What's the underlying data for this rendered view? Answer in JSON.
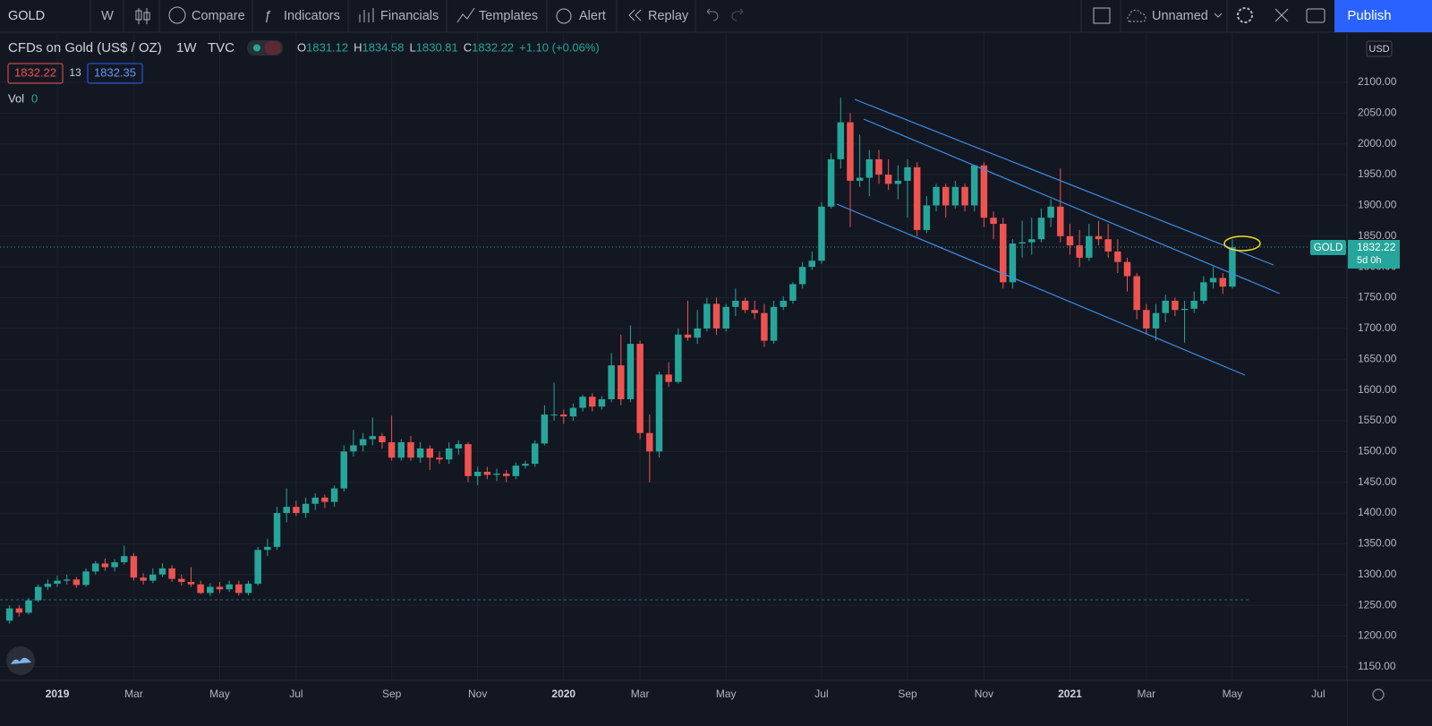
{
  "toolbar": {
    "symbol": "GOLD",
    "interval": "W",
    "compare": "Compare",
    "indicators": "Indicators",
    "financials": "Financials",
    "templates": "Templates",
    "alert": "Alert",
    "replay": "Replay",
    "layout_name": "Unnamed",
    "publish": "Publish"
  },
  "legend": {
    "title": "CFDs on Gold (US$ / OZ)",
    "interval": "1W",
    "source": "TVC",
    "ohlc": [
      {
        "key": "O",
        "value": "1831.12"
      },
      {
        "key": "H",
        "value": "1834.58"
      },
      {
        "key": "L",
        "value": "1830.81"
      },
      {
        "key": "C",
        "value": "1832.22"
      }
    ],
    "change": "+1.10 (+0.06%)",
    "bid": "1832.22",
    "spread": "13",
    "ask": "1832.35",
    "vol_label": "Vol",
    "vol_value": "0"
  },
  "price_axis": {
    "currency": "USD",
    "tag_symbol": "GOLD",
    "tag_price": "1832.22",
    "tag_countdown": "5d 0h"
  },
  "chart_data": {
    "type": "candlestick",
    "up_color": "#26a69a",
    "down_color": "#ef5350",
    "xlim": [
      -1,
      140
    ],
    "ylim": [
      1128,
      2180
    ],
    "xticks": [
      {
        "value": 5,
        "label": "2019"
      },
      {
        "value": 13,
        "label": "Mar"
      },
      {
        "value": 22,
        "label": "May"
      },
      {
        "value": 30,
        "label": "Jul"
      },
      {
        "value": 40,
        "label": "Sep"
      },
      {
        "value": 49,
        "label": "Nov"
      },
      {
        "value": 58,
        "label": "2020"
      },
      {
        "value": 66,
        "label": "Mar"
      },
      {
        "value": 75,
        "label": "May"
      },
      {
        "value": 85,
        "label": "Jul"
      },
      {
        "value": 94,
        "label": "Sep"
      },
      {
        "value": 102,
        "label": "Nov"
      },
      {
        "value": 111,
        "label": "2021"
      },
      {
        "value": 119,
        "label": "Mar"
      },
      {
        "value": 128,
        "label": "May"
      },
      {
        "value": 137,
        "label": "Jul"
      }
    ],
    "yticks": [
      {
        "value": 1150,
        "label": "1150.00"
      },
      {
        "value": 1200,
        "label": "1200.00"
      },
      {
        "value": 1250,
        "label": "1250.00"
      },
      {
        "value": 1300,
        "label": "1300.00"
      },
      {
        "value": 1350,
        "label": "1350.00"
      },
      {
        "value": 1400,
        "label": "1400.00"
      },
      {
        "value": 1450,
        "label": "1450.00"
      },
      {
        "value": 1500,
        "label": "1500.00"
      },
      {
        "value": 1550,
        "label": "1550.00"
      },
      {
        "value": 1600,
        "label": "1600.00"
      },
      {
        "value": 1650,
        "label": "1650.00"
      },
      {
        "value": 1700,
        "label": "1700.00"
      },
      {
        "value": 1750,
        "label": "1750.00"
      },
      {
        "value": 1800,
        "label": "1800.00"
      },
      {
        "value": 1850,
        "label": "1850.00"
      },
      {
        "value": 1900,
        "label": "1900.00"
      },
      {
        "value": 1950,
        "label": "1950.00"
      },
      {
        "value": 2000,
        "label": "2000.00"
      },
      {
        "value": 2050,
        "label": "2050.00"
      },
      {
        "value": 2100,
        "label": "2100.00"
      }
    ],
    "grid": true,
    "candles": [
      [
        1225,
        1250,
        1220,
        1245
      ],
      [
        1245,
        1250,
        1232,
        1238
      ],
      [
        1238,
        1262,
        1235,
        1258
      ],
      [
        1258,
        1284,
        1255,
        1280
      ],
      [
        1280,
        1292,
        1275,
        1285
      ],
      [
        1285,
        1298,
        1280,
        1290
      ],
      [
        1290,
        1300,
        1284,
        1292
      ],
      [
        1292,
        1296,
        1278,
        1283
      ],
      [
        1283,
        1310,
        1280,
        1305
      ],
      [
        1305,
        1322,
        1300,
        1318
      ],
      [
        1318,
        1326,
        1306,
        1312
      ],
      [
        1312,
        1325,
        1305,
        1320
      ],
      [
        1320,
        1347,
        1316,
        1330
      ],
      [
        1330,
        1335,
        1290,
        1295
      ],
      [
        1295,
        1302,
        1284,
        1290
      ],
      [
        1290,
        1310,
        1286,
        1300
      ],
      [
        1300,
        1318,
        1296,
        1310
      ],
      [
        1310,
        1315,
        1288,
        1293
      ],
      [
        1293,
        1300,
        1282,
        1288
      ],
      [
        1288,
        1312,
        1280,
        1284
      ],
      [
        1284,
        1290,
        1268,
        1270
      ],
      [
        1270,
        1286,
        1265,
        1280
      ],
      [
        1280,
        1288,
        1270,
        1276
      ],
      [
        1276,
        1290,
        1272,
        1284
      ],
      [
        1284,
        1290,
        1266,
        1270
      ],
      [
        1270,
        1290,
        1266,
        1285
      ],
      [
        1285,
        1345,
        1282,
        1340
      ],
      [
        1340,
        1358,
        1330,
        1345
      ],
      [
        1345,
        1410,
        1340,
        1400
      ],
      [
        1400,
        1440,
        1385,
        1410
      ],
      [
        1410,
        1420,
        1395,
        1400
      ],
      [
        1400,
        1425,
        1392,
        1415
      ],
      [
        1415,
        1432,
        1405,
        1425
      ],
      [
        1425,
        1430,
        1408,
        1418
      ],
      [
        1418,
        1445,
        1410,
        1440
      ],
      [
        1440,
        1510,
        1435,
        1500
      ],
      [
        1500,
        1535,
        1492,
        1510
      ],
      [
        1510,
        1530,
        1500,
        1520
      ],
      [
        1520,
        1555,
        1510,
        1525
      ],
      [
        1525,
        1530,
        1505,
        1515
      ],
      [
        1515,
        1558,
        1485,
        1490
      ],
      [
        1490,
        1520,
        1485,
        1515
      ],
      [
        1515,
        1525,
        1485,
        1490
      ],
      [
        1490,
        1515,
        1482,
        1505
      ],
      [
        1505,
        1510,
        1470,
        1490
      ],
      [
        1490,
        1500,
        1480,
        1487
      ],
      [
        1487,
        1515,
        1480,
        1505
      ],
      [
        1505,
        1518,
        1495,
        1512
      ],
      [
        1512,
        1515,
        1450,
        1460
      ],
      [
        1460,
        1475,
        1445,
        1467
      ],
      [
        1467,
        1475,
        1455,
        1462
      ],
      [
        1462,
        1472,
        1452,
        1464
      ],
      [
        1464,
        1470,
        1450,
        1460
      ],
      [
        1460,
        1482,
        1455,
        1477
      ],
      [
        1477,
        1485,
        1472,
        1480
      ],
      [
        1480,
        1518,
        1475,
        1513
      ],
      [
        1513,
        1575,
        1510,
        1560
      ],
      [
        1560,
        1612,
        1550,
        1560
      ],
      [
        1560,
        1568,
        1545,
        1557
      ],
      [
        1557,
        1578,
        1550,
        1571
      ],
      [
        1571,
        1592,
        1565,
        1589
      ],
      [
        1589,
        1595,
        1565,
        1573
      ],
      [
        1573,
        1590,
        1568,
        1585
      ],
      [
        1585,
        1660,
        1580,
        1640
      ],
      [
        1640,
        1690,
        1575,
        1585
      ],
      [
        1585,
        1705,
        1580,
        1675
      ],
      [
        1675,
        1680,
        1520,
        1530
      ],
      [
        1530,
        1560,
        1450,
        1500
      ],
      [
        1500,
        1630,
        1490,
        1625
      ],
      [
        1625,
        1645,
        1605,
        1613
      ],
      [
        1613,
        1700,
        1610,
        1690
      ],
      [
        1690,
        1745,
        1680,
        1685
      ],
      [
        1685,
        1730,
        1675,
        1700
      ],
      [
        1700,
        1750,
        1695,
        1740
      ],
      [
        1740,
        1750,
        1690,
        1700
      ],
      [
        1700,
        1740,
        1695,
        1735
      ],
      [
        1735,
        1765,
        1720,
        1745
      ],
      [
        1745,
        1750,
        1725,
        1730
      ],
      [
        1730,
        1745,
        1715,
        1725
      ],
      [
        1725,
        1740,
        1670,
        1680
      ],
      [
        1680,
        1745,
        1675,
        1735
      ],
      [
        1735,
        1752,
        1730,
        1745
      ],
      [
        1745,
        1775,
        1740,
        1772
      ],
      [
        1772,
        1808,
        1765,
        1800
      ],
      [
        1800,
        1825,
        1795,
        1810
      ],
      [
        1810,
        1905,
        1805,
        1898
      ],
      [
        1898,
        1985,
        1895,
        1975
      ],
      [
        1975,
        2075,
        1960,
        2035
      ],
      [
        2035,
        2050,
        1865,
        1940
      ],
      [
        1940,
        2015,
        1930,
        1945
      ],
      [
        1945,
        1990,
        1915,
        1975
      ],
      [
        1975,
        1990,
        1935,
        1950
      ],
      [
        1950,
        1975,
        1925,
        1935
      ],
      [
        1935,
        1965,
        1910,
        1940
      ],
      [
        1940,
        1975,
        1880,
        1962
      ],
      [
        1962,
        1970,
        1850,
        1860
      ],
      [
        1860,
        1915,
        1855,
        1900
      ],
      [
        1900,
        1935,
        1890,
        1930
      ],
      [
        1930,
        1935,
        1880,
        1900
      ],
      [
        1900,
        1940,
        1895,
        1930
      ],
      [
        1930,
        1935,
        1890,
        1900
      ],
      [
        1900,
        1965,
        1890,
        1965
      ],
      [
        1965,
        1970,
        1865,
        1880
      ],
      [
        1880,
        1890,
        1845,
        1870
      ],
      [
        1870,
        1880,
        1765,
        1775
      ],
      [
        1775,
        1845,
        1765,
        1838
      ],
      [
        1838,
        1875,
        1815,
        1840
      ],
      [
        1840,
        1880,
        1820,
        1845
      ],
      [
        1845,
        1895,
        1840,
        1880
      ],
      [
        1880,
        1910,
        1865,
        1898
      ],
      [
        1898,
        1960,
        1840,
        1850
      ],
      [
        1850,
        1870,
        1820,
        1835
      ],
      [
        1835,
        1860,
        1800,
        1815
      ],
      [
        1815,
        1870,
        1810,
        1850
      ],
      [
        1850,
        1875,
        1835,
        1845
      ],
      [
        1845,
        1870,
        1815,
        1825
      ],
      [
        1825,
        1845,
        1790,
        1808
      ],
      [
        1808,
        1815,
        1760,
        1785
      ],
      [
        1785,
        1790,
        1715,
        1730
      ],
      [
        1730,
        1740,
        1690,
        1700
      ],
      [
        1700,
        1740,
        1680,
        1725
      ],
      [
        1725,
        1755,
        1710,
        1745
      ],
      [
        1745,
        1750,
        1720,
        1730
      ],
      [
        1730,
        1745,
        1677,
        1732
      ],
      [
        1732,
        1760,
        1725,
        1745
      ],
      [
        1745,
        1785,
        1740,
        1775
      ],
      [
        1775,
        1800,
        1765,
        1782
      ],
      [
        1782,
        1790,
        1756,
        1768
      ],
      [
        1768,
        1845,
        1765,
        1832
      ]
    ]
  }
}
